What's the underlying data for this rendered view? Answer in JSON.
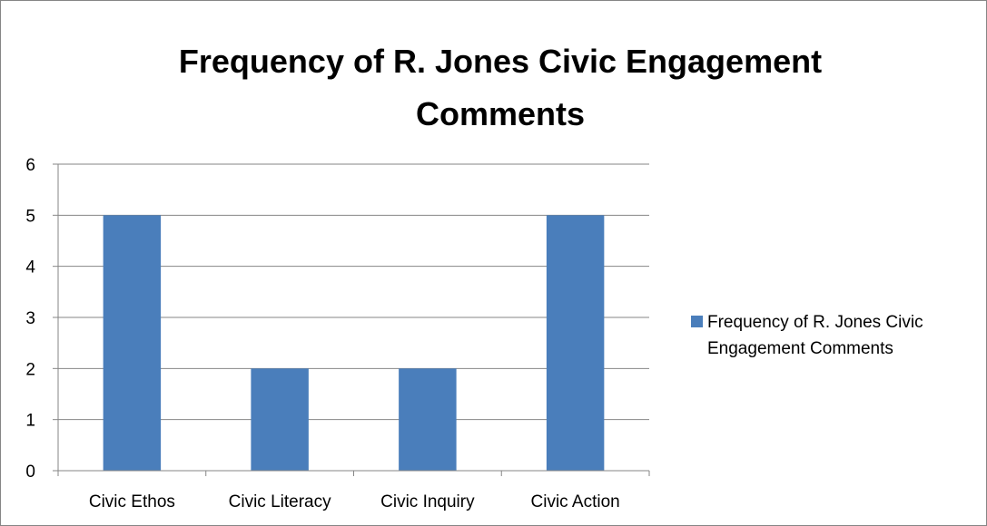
{
  "chart_data": {
    "type": "bar",
    "title": "Frequency of R. Jones Civic Engagement Comments",
    "categories": [
      "Civic Ethos",
      "Civic Literacy",
      "Civic Inquiry",
      "Civic Action"
    ],
    "series": [
      {
        "name": "Frequency of R. Jones Civic Engagement Comments",
        "values": [
          5,
          2,
          2,
          5
        ],
        "color": "#4a7ebb"
      }
    ],
    "ylim": [
      0,
      6
    ],
    "yticks": [
      0,
      1,
      2,
      3,
      4,
      5,
      6
    ],
    "grid": true,
    "legend_position": "right",
    "xlabel": "",
    "ylabel": ""
  }
}
